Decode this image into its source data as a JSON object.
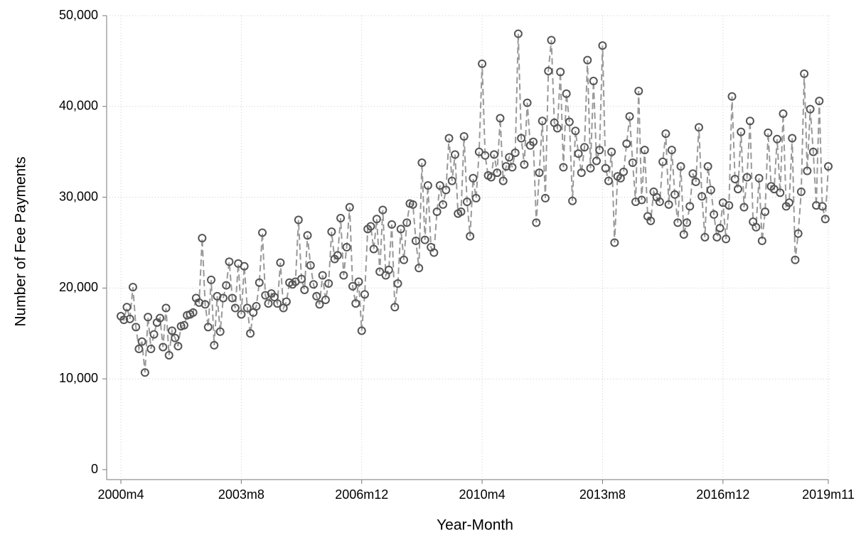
{
  "chart_data": {
    "type": "line",
    "x_label": "Year-Month",
    "y_label": "Number of Fee Payments",
    "x": [
      "2000m4",
      "2000m5",
      "2000m6",
      "2000m7",
      "2000m8",
      "2000m9",
      "2000m10",
      "2000m11",
      "2000m12",
      "2001m1",
      "2001m2",
      "2001m3",
      "2001m4",
      "2001m5",
      "2001m6",
      "2001m7",
      "2001m8",
      "2001m9",
      "2001m10",
      "2001m11",
      "2001m12",
      "2002m1",
      "2002m2",
      "2002m3",
      "2002m4",
      "2002m5",
      "2002m6",
      "2002m7",
      "2002m8",
      "2002m9",
      "2002m10",
      "2002m11",
      "2002m12",
      "2003m1",
      "2003m2",
      "2003m3",
      "2003m4",
      "2003m5",
      "2003m6",
      "2003m7",
      "2003m8",
      "2003m9",
      "2003m10",
      "2003m11",
      "2003m12",
      "2004m1",
      "2004m2",
      "2004m3",
      "2004m4",
      "2004m5",
      "2004m6",
      "2004m7",
      "2004m8",
      "2004m9",
      "2004m10",
      "2004m11",
      "2004m12",
      "2005m1",
      "2005m2",
      "2005m3",
      "2005m4",
      "2005m5",
      "2005m6",
      "2005m7",
      "2005m8",
      "2005m9",
      "2005m10",
      "2005m11",
      "2005m12",
      "2006m1",
      "2006m2",
      "2006m3",
      "2006m4",
      "2006m5",
      "2006m6",
      "2006m7",
      "2006m8",
      "2006m9",
      "2006m10",
      "2006m11",
      "2006m12",
      "2007m1",
      "2007m2",
      "2007m3",
      "2007m4",
      "2007m5",
      "2007m6",
      "2007m7",
      "2007m8",
      "2007m9",
      "2007m10",
      "2007m11",
      "2007m12",
      "2008m1",
      "2008m2",
      "2008m3",
      "2008m4",
      "2008m5",
      "2008m6",
      "2008m7",
      "2008m8",
      "2008m9",
      "2008m10",
      "2008m11",
      "2008m12",
      "2009m1",
      "2009m2",
      "2009m3",
      "2009m4",
      "2009m5",
      "2009m6",
      "2009m7",
      "2009m8",
      "2009m9",
      "2009m10",
      "2009m11",
      "2009m12",
      "2010m1",
      "2010m2",
      "2010m3",
      "2010m4",
      "2010m5",
      "2010m6",
      "2010m7",
      "2010m8",
      "2010m9",
      "2010m10",
      "2010m11",
      "2010m12",
      "2011m1",
      "2011m2",
      "2011m3",
      "2011m4",
      "2011m5",
      "2011m6",
      "2011m7",
      "2011m8",
      "2011m9",
      "2011m10",
      "2011m11",
      "2011m12",
      "2012m1",
      "2012m2",
      "2012m3",
      "2012m4",
      "2012m5",
      "2012m6",
      "2012m7",
      "2012m8",
      "2012m9",
      "2012m10",
      "2012m11",
      "2012m12",
      "2013m1",
      "2013m2",
      "2013m3",
      "2013m4",
      "2013m5",
      "2013m6",
      "2013m7",
      "2013m8",
      "2013m9",
      "2013m10",
      "2013m11",
      "2013m12",
      "2014m1",
      "2014m2",
      "2014m3",
      "2014m4",
      "2014m5",
      "2014m6",
      "2014m7",
      "2014m8",
      "2014m9",
      "2014m10",
      "2014m11",
      "2014m12",
      "2015m1",
      "2015m2",
      "2015m3",
      "2015m4",
      "2015m5",
      "2015m6",
      "2015m7",
      "2015m8",
      "2015m9",
      "2015m10",
      "2015m11",
      "2015m12",
      "2016m1",
      "2016m2",
      "2016m3",
      "2016m4",
      "2016m5",
      "2016m6",
      "2016m7",
      "2016m8",
      "2016m9",
      "2016m10",
      "2016m11",
      "2016m12",
      "2017m1",
      "2017m2",
      "2017m3",
      "2017m4",
      "2017m5",
      "2017m6",
      "2017m7",
      "2017m8",
      "2017m9",
      "2017m10",
      "2017m11",
      "2017m12",
      "2018m1",
      "2018m2",
      "2018m3",
      "2018m4",
      "2018m5",
      "2018m6",
      "2018m7",
      "2018m8",
      "2018m9",
      "2018m10",
      "2018m11",
      "2018m12",
      "2019m1",
      "2019m2",
      "2019m3",
      "2019m4",
      "2019m5",
      "2019m6",
      "2019m7",
      "2019m8",
      "2019m9",
      "2019m10",
      "2019m11"
    ],
    "values": [
      16900,
      16500,
      17900,
      16600,
      20100,
      15700,
      13300,
      14100,
      10700,
      16800,
      13300,
      14900,
      16200,
      16700,
      13500,
      17800,
      12600,
      15300,
      14500,
      13600,
      15800,
      15900,
      17000,
      17100,
      17300,
      18900,
      18400,
      25500,
      18200,
      15700,
      20900,
      13700,
      19100,
      15200,
      18900,
      20300,
      22900,
      18900,
      17800,
      22700,
      17100,
      22400,
      17800,
      15000,
      17300,
      18000,
      20600,
      26100,
      19200,
      18300,
      19400,
      19000,
      18300,
      22800,
      17800,
      18500,
      20600,
      20400,
      20700,
      27500,
      21000,
      19800,
      25800,
      22500,
      20400,
      19100,
      18200,
      21400,
      18700,
      20500,
      26200,
      23200,
      23600,
      27700,
      21400,
      24500,
      28900,
      20200,
      18300,
      20700,
      15300,
      19300,
      26500,
      26800,
      24300,
      27600,
      21800,
      28600,
      21400,
      22000,
      27000,
      17900,
      20500,
      26500,
      23100,
      27200,
      29300,
      29200,
      25200,
      22200,
      33800,
      25300,
      31300,
      24500,
      23900,
      28400,
      31300,
      29200,
      30800,
      36500,
      31800,
      34700,
      28200,
      28400,
      36700,
      29500,
      25700,
      32100,
      29900,
      35000,
      44700,
      34600,
      32400,
      32200,
      34700,
      32700,
      38700,
      31800,
      33400,
      34400,
      33300,
      34900,
      48000,
      36500,
      33600,
      40400,
      35700,
      36100,
      27200,
      32700,
      38400,
      29900,
      43900,
      47300,
      38200,
      37600,
      43800,
      33300,
      41400,
      38300,
      29600,
      37300,
      34800,
      32700,
      35500,
      45100,
      33200,
      42800,
      34000,
      35200,
      46700,
      33200,
      31800,
      35000,
      25000,
      32300,
      32100,
      32800,
      35900,
      38900,
      33800,
      29500,
      41700,
      29700,
      35200,
      27900,
      27400,
      30600,
      30000,
      29500,
      33900,
      37000,
      29200,
      35200,
      30300,
      27200,
      33400,
      25900,
      27200,
      29000,
      32600,
      31700,
      37700,
      30100,
      25600,
      33400,
      30800,
      28100,
      25600,
      26600,
      29400,
      25400,
      29100,
      41100,
      32000,
      30900,
      37200,
      28900,
      32200,
      38400,
      27300,
      26700,
      32100,
      25200,
      28400,
      37100,
      31200,
      30900,
      36400,
      30500,
      39200,
      29000,
      29400,
      36500,
      23100,
      26000,
      30600,
      43600,
      32900,
      39700,
      35000,
      29100,
      40600,
      29000,
      27600,
      33400
    ],
    "color": "#999999",
    "marker_color": "#555555",
    "xticks": [
      "2000m4",
      "2003m8",
      "2006m12",
      "2010m4",
      "2013m8",
      "2016m12",
      "2019m11"
    ],
    "ylim": [
      0,
      50000
    ],
    "yticks": [
      0,
      {
        "value": 10000,
        "label": "10,000"
      },
      {
        "value": 20000,
        "label": "20,000"
      },
      {
        "value": 30000,
        "label": "30,000"
      },
      {
        "value": 40000,
        "label": "40,000"
      },
      {
        "value": 50000,
        "label": "50,000"
      }
    ],
    "grid": true
  }
}
